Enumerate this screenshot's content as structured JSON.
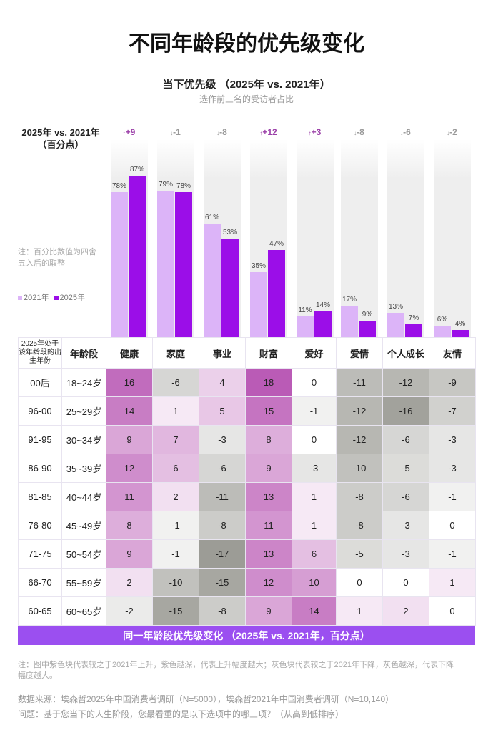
{
  "title": "不同年龄段的优先级变化",
  "chart_data": [
    {
      "type": "bar",
      "title": "当下优先级 （2025年 vs. 2021年）",
      "subtitle": "选作前三名的受访者占比",
      "categories": [
        "健康",
        "家庭",
        "事业",
        "财富",
        "爱好",
        "爱情",
        "个人成长",
        "友情"
      ],
      "series": [
        {
          "name": "2021年",
          "values": [
            78,
            79,
            61,
            35,
            11,
            17,
            13,
            6
          ],
          "color": "#dcb4f8"
        },
        {
          "name": "2025年",
          "values": [
            87,
            78,
            53,
            47,
            14,
            9,
            7,
            4
          ],
          "color": "#9b0ee8"
        }
      ],
      "delta_label": "2025年 vs. 2021年\n（百分点）",
      "deltas": [
        "+9",
        "-1",
        "-8",
        "+12",
        "+3",
        "-8",
        "-6",
        "-2"
      ],
      "ylim": [
        0,
        100
      ],
      "legend": "left",
      "note": "注：百分比数值为四舍五入后的取整"
    },
    {
      "type": "heatmap",
      "title": "同一年龄段优先级变化 （2025年 vs. 2021年，百分点）",
      "header": [
        "2025年处于该年龄段的出生年份",
        "年龄段",
        "健康",
        "家庭",
        "事业",
        "财富",
        "爱好",
        "爱情",
        "个人成长",
        "友情"
      ],
      "rows": [
        {
          "birth": "00后",
          "age": "18~24岁",
          "values": [
            16,
            -6,
            4,
            18,
            0,
            -11,
            -12,
            -9
          ]
        },
        {
          "birth": "96-00",
          "age": "25~29岁",
          "values": [
            14,
            1,
            5,
            15,
            -1,
            -12,
            -16,
            -7
          ]
        },
        {
          "birth": "91-95",
          "age": "30~34岁",
          "values": [
            9,
            7,
            -3,
            8,
            0,
            -12,
            -6,
            -3
          ]
        },
        {
          "birth": "86-90",
          "age": "35~39岁",
          "values": [
            12,
            6,
            -6,
            9,
            -3,
            -10,
            -5,
            -3
          ]
        },
        {
          "birth": "81-85",
          "age": "40~44岁",
          "values": [
            11,
            2,
            -11,
            13,
            1,
            -8,
            -6,
            -1
          ]
        },
        {
          "birth": "76-80",
          "age": "45~49岁",
          "values": [
            8,
            -1,
            -8,
            11,
            1,
            -8,
            -3,
            0
          ]
        },
        {
          "birth": "71-75",
          "age": "50~54岁",
          "values": [
            9,
            -1,
            -17,
            13,
            6,
            -5,
            -3,
            -1
          ]
        },
        {
          "birth": "66-70",
          "age": "55~59岁",
          "values": [
            2,
            -10,
            -15,
            12,
            10,
            0,
            0,
            1
          ]
        },
        {
          "birth": "60-65",
          "age": "60~65岁",
          "values": [
            -2,
            -15,
            -8,
            9,
            14,
            1,
            2,
            0
          ]
        }
      ],
      "positive_color": "#b54fb0",
      "negative_color": "#8f8f88"
    }
  ],
  "footer": {
    "note": "注：图中紫色块代表较之于2021年上升，紫色越深，代表上升幅度越大；灰色块代表较之于2021年下降，灰色越深，代表下降幅度越大。",
    "source": "数据来源：埃森哲2025年中国消费者调研（N=5000），埃森哲2021年中国消费者调研（N=10,140）",
    "question": "问题：基于您当下的人生阶段，您最看重的是以下选项中的哪三项？（从高到低排序）"
  }
}
